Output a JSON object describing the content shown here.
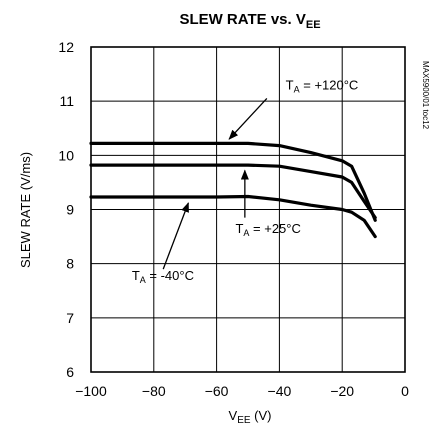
{
  "chart_data": {
    "type": "line",
    "title_main": "SLEW RATE vs. V",
    "title_sub": "EE",
    "xlabel_main": "V",
    "xlabel_sub": "EE",
    "xlabel_unit": " (V)",
    "ylabel": "SLEW RATE (V/ms)",
    "side_note": "MAX5900/01 toc12",
    "xlim": [
      -100,
      0
    ],
    "ylim": [
      6,
      12
    ],
    "xticks": [
      -100,
      -80,
      -60,
      -40,
      -20,
      0
    ],
    "xtick_labels": [
      "−100",
      "−80",
      "−60",
      "−40",
      "−20",
      "0"
    ],
    "yticks": [
      6,
      7,
      8,
      9,
      10,
      11,
      12
    ],
    "ytick_labels": [
      "6",
      "7",
      "8",
      "9",
      "10",
      "11",
      "12"
    ],
    "grid": true,
    "series": [
      {
        "name": "T_A = +120°C",
        "x": [
          -100,
          -60,
          -50,
          -40,
          -30,
          -20,
          -17,
          -13,
          -9.5
        ],
        "y": [
          10.22,
          10.22,
          10.22,
          10.18,
          10.05,
          9.9,
          9.8,
          9.3,
          8.8
        ]
      },
      {
        "name": "T_A = +25°C",
        "x": [
          -100,
          -60,
          -50,
          -40,
          -30,
          -20,
          -17,
          -13,
          -9.5
        ],
        "y": [
          9.82,
          9.82,
          9.82,
          9.8,
          9.7,
          9.6,
          9.5,
          9.15,
          8.85
        ]
      },
      {
        "name": "T_A = -40°C",
        "x": [
          -100,
          -60,
          -50,
          -40,
          -30,
          -20,
          -17,
          -13,
          -9.5
        ],
        "y": [
          9.23,
          9.23,
          9.24,
          9.18,
          9.08,
          9.0,
          8.95,
          8.8,
          8.5
        ]
      }
    ],
    "annotations": [
      {
        "sym": "T",
        "sub": "A",
        "rest": " = +120°C",
        "tx": -38,
        "ty": 11.22,
        "ax": -44,
        "ay": 11.05,
        "bx": -56,
        "by": 10.3
      },
      {
        "sym": "T",
        "sub": "A",
        "rest": " = +25°C",
        "tx": -54,
        "ty": 8.57,
        "ax": -51,
        "ay": 8.85,
        "bx": -51,
        "by": 9.72
      },
      {
        "sym": "T",
        "sub": "A",
        "rest": " = -40°C",
        "tx": -87,
        "ty": 7.7,
        "ax": -77,
        "ay": 7.9,
        "bx": -69,
        "by": 9.12
      }
    ]
  }
}
